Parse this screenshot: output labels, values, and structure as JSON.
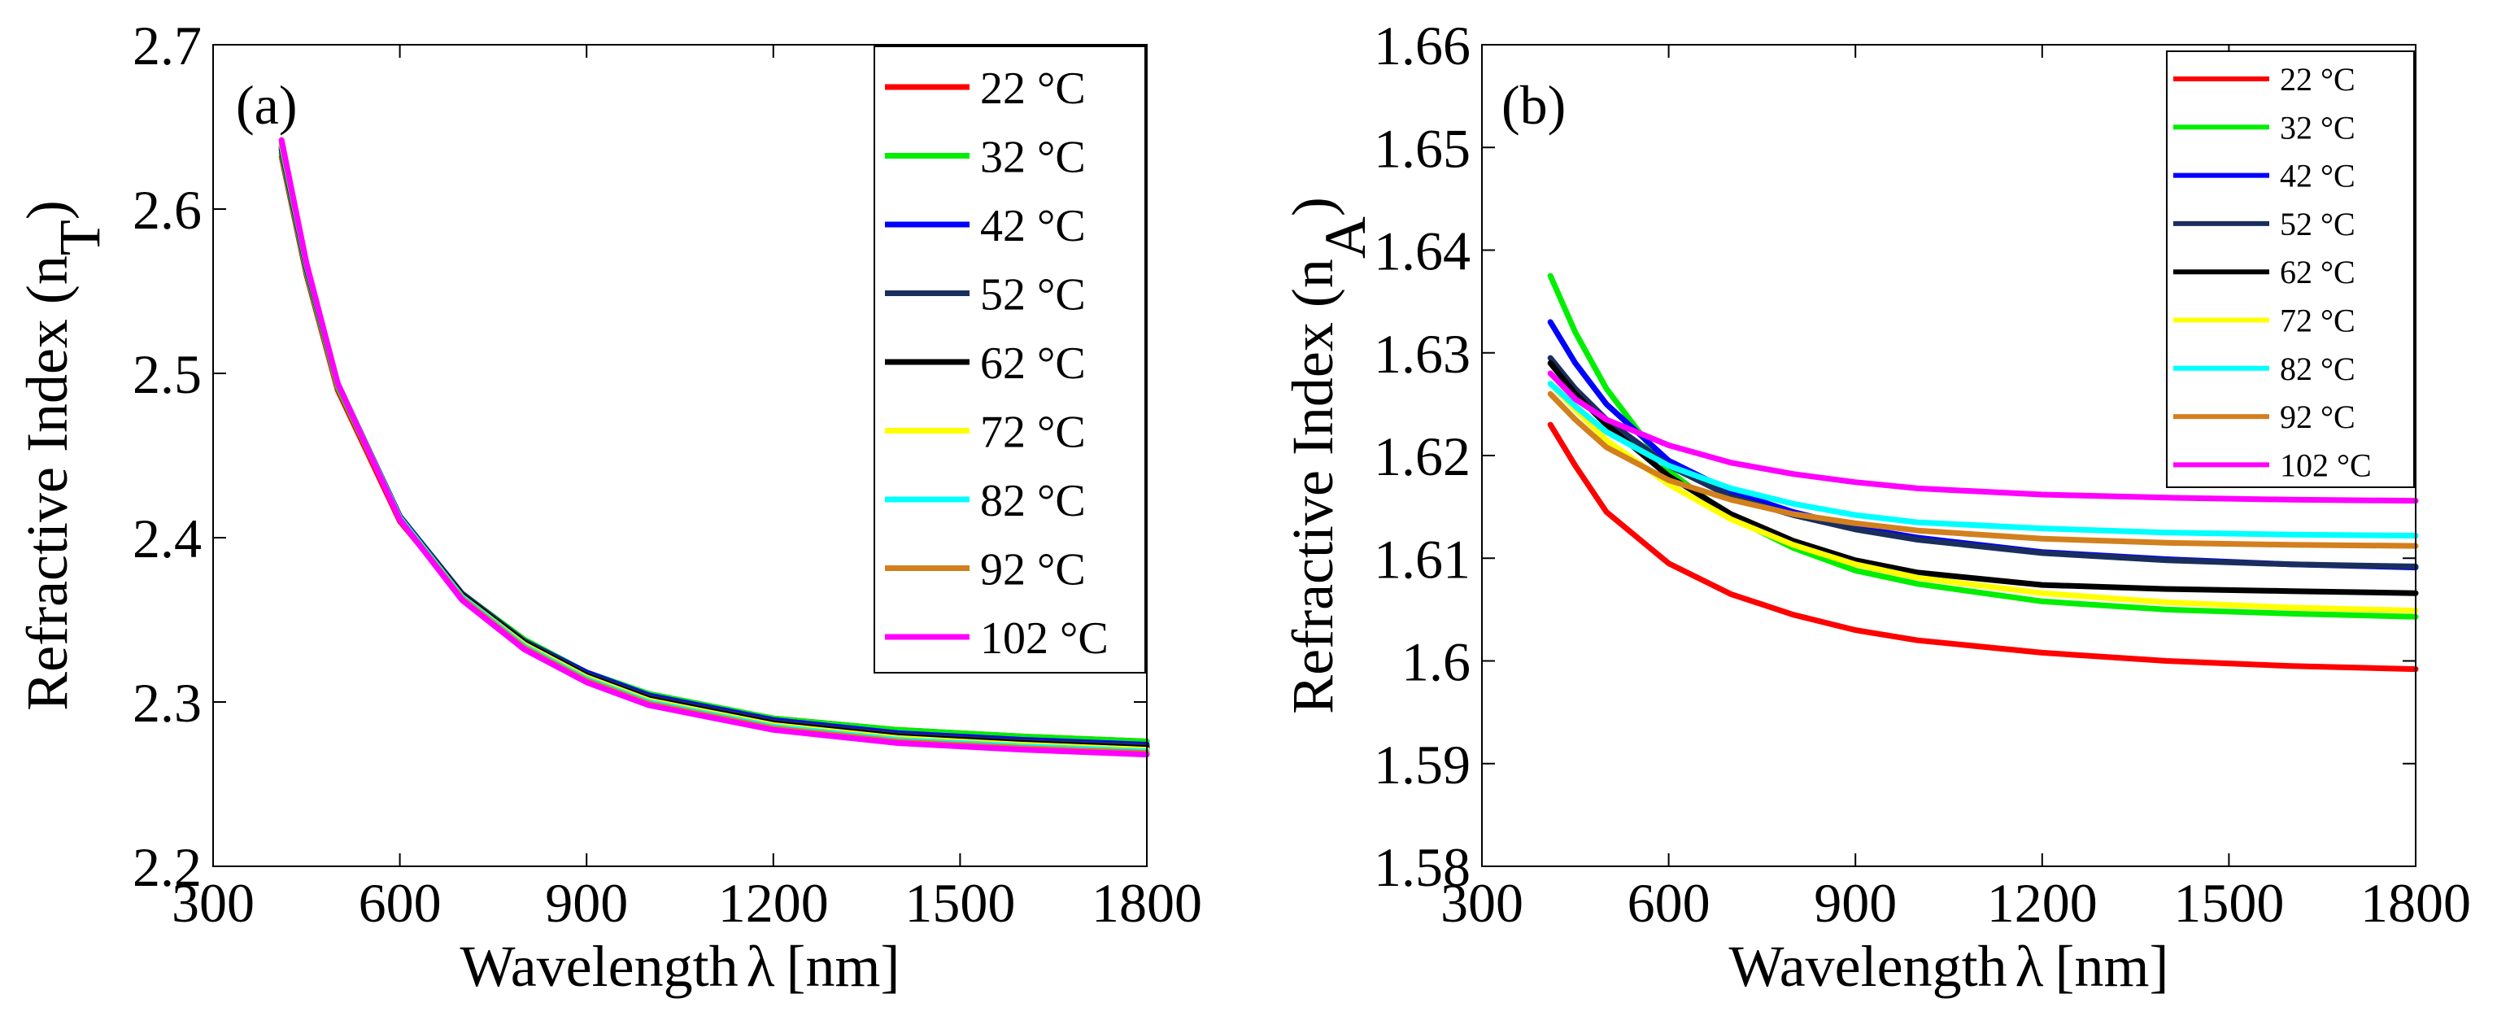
{
  "figure": {
    "panel_a_label": "(a)",
    "panel_b_label": "(b)"
  },
  "chart_data": [
    {
      "type": "line",
      "panel": "(a)",
      "title": "",
      "xlabel_main": "Wavelength",
      "xlabel_symbol": "λ",
      "xlabel_unit": "[nm]",
      "ylabel_main": "Refractive Index (n",
      "ylabel_sub": "T",
      "ylabel_close": ")",
      "xlim": [
        300,
        1800
      ],
      "ylim": [
        2.2,
        2.7
      ],
      "xticks": [
        300,
        600,
        900,
        1200,
        1500,
        1800
      ],
      "yticks": [
        2.2,
        2.3,
        2.4,
        2.5,
        2.6,
        2.7
      ],
      "ytick_labels": [
        "2.2",
        "2.3",
        "2.4",
        "2.5",
        "2.6",
        "2.7"
      ],
      "grid": false,
      "legend_position": "top-right",
      "x": [
        410,
        450,
        500,
        600,
        700,
        800,
        900,
        1000,
        1200,
        1400,
        1600,
        1800
      ],
      "series": [
        {
          "name": "22 °C",
          "color": "#ff0000",
          "values": [
            2.632,
            2.56,
            2.49,
            2.41,
            2.364,
            2.336,
            2.317,
            2.304,
            2.29,
            2.283,
            2.279,
            2.276
          ]
        },
        {
          "name": "32 °C",
          "color": "#00ee00",
          "values": [
            2.634,
            2.562,
            2.492,
            2.412,
            2.366,
            2.338,
            2.318,
            2.305,
            2.29,
            2.283,
            2.279,
            2.276
          ]
        },
        {
          "name": "42 °C",
          "color": "#0000ff",
          "values": [
            2.636,
            2.564,
            2.494,
            2.413,
            2.366,
            2.337,
            2.318,
            2.304,
            2.289,
            2.281,
            2.277,
            2.274
          ]
        },
        {
          "name": "52 °C",
          "color": "#1a2e5e",
          "values": [
            2.637,
            2.565,
            2.494,
            2.413,
            2.366,
            2.337,
            2.317,
            2.303,
            2.288,
            2.28,
            2.276,
            2.273
          ]
        },
        {
          "name": "62 °C",
          "color": "#000000",
          "values": [
            2.638,
            2.565,
            2.494,
            2.412,
            2.365,
            2.336,
            2.316,
            2.302,
            2.287,
            2.279,
            2.275,
            2.272
          ]
        },
        {
          "name": "72 °C",
          "color": "#ffff00",
          "values": [
            2.639,
            2.566,
            2.494,
            2.412,
            2.364,
            2.335,
            2.315,
            2.301,
            2.286,
            2.278,
            2.274,
            2.271
          ]
        },
        {
          "name": "82 °C",
          "color": "#00ffff",
          "values": [
            2.64,
            2.566,
            2.494,
            2.412,
            2.364,
            2.334,
            2.314,
            2.3,
            2.285,
            2.277,
            2.273,
            2.27
          ]
        },
        {
          "name": "92 °C",
          "color": "#d2801e",
          "values": [
            2.641,
            2.567,
            2.494,
            2.411,
            2.363,
            2.333,
            2.313,
            2.299,
            2.284,
            2.276,
            2.272,
            2.269
          ]
        },
        {
          "name": "102 °C",
          "color": "#ff00ff",
          "values": [
            2.642,
            2.567,
            2.494,
            2.411,
            2.362,
            2.332,
            2.312,
            2.298,
            2.283,
            2.275,
            2.271,
            2.268
          ]
        }
      ]
    },
    {
      "type": "line",
      "panel": "(b)",
      "title": "",
      "xlabel_main": "Wavelength",
      "xlabel_symbol": "λ",
      "xlabel_unit": "[nm]",
      "ylabel_main": "Refractive Index (n",
      "ylabel_sub": "A",
      "ylabel_close": ")",
      "xlim": [
        300,
        1800
      ],
      "ylim": [
        1.58,
        1.66
      ],
      "xticks": [
        300,
        600,
        900,
        1200,
        1500,
        1800
      ],
      "yticks": [
        1.58,
        1.59,
        1.6,
        1.61,
        1.62,
        1.63,
        1.64,
        1.65,
        1.66
      ],
      "ytick_labels": [
        "1.58",
        "1.59",
        "1.6",
        "1.61",
        "1.62",
        "1.63",
        "1.64",
        "1.65",
        "1.66"
      ],
      "grid": false,
      "legend_position": "top-right",
      "x": [
        410,
        450,
        500,
        600,
        700,
        800,
        900,
        1000,
        1200,
        1400,
        1600,
        1800
      ],
      "series": [
        {
          "name": "22 °C",
          "color": "#ff0000",
          "values": [
            1.623,
            1.619,
            1.6145,
            1.6095,
            1.6065,
            1.6045,
            1.603,
            1.602,
            1.6008,
            1.6,
            1.5995,
            1.5992
          ]
        },
        {
          "name": "32 °C",
          "color": "#00ee00",
          "values": [
            1.6375,
            1.632,
            1.6265,
            1.6185,
            1.614,
            1.611,
            1.6088,
            1.6075,
            1.6058,
            1.605,
            1.6046,
            1.6043
          ]
        },
        {
          "name": "42 °C",
          "color": "#0000ff",
          "values": [
            1.633,
            1.629,
            1.625,
            1.6195,
            1.6165,
            1.6145,
            1.613,
            1.612,
            1.6106,
            1.6099,
            1.6094,
            1.6091
          ]
        },
        {
          "name": "52 °C",
          "color": "#1a2e5e",
          "values": [
            1.6295,
            1.6265,
            1.6235,
            1.619,
            1.616,
            1.6142,
            1.6128,
            1.6118,
            1.6105,
            1.6098,
            1.6094,
            1.6092
          ]
        },
        {
          "name": "62 °C",
          "color": "#000000",
          "values": [
            1.629,
            1.626,
            1.623,
            1.618,
            1.6143,
            1.6117,
            1.6098,
            1.6086,
            1.6074,
            1.607,
            1.6068,
            1.6066
          ]
        },
        {
          "name": "72 °C",
          "color": "#ffff00",
          "values": [
            1.627,
            1.6245,
            1.6215,
            1.6172,
            1.6138,
            1.6113,
            1.6094,
            1.6081,
            1.6066,
            1.6057,
            1.6052,
            1.6049
          ]
        },
        {
          "name": "82 °C",
          "color": "#00ffff",
          "values": [
            1.627,
            1.6248,
            1.6223,
            1.619,
            1.6168,
            1.6153,
            1.6142,
            1.6135,
            1.6129,
            1.6125,
            1.6123,
            1.6122
          ]
        },
        {
          "name": "92 °C",
          "color": "#d2801e",
          "values": [
            1.626,
            1.6235,
            1.6208,
            1.6176,
            1.6157,
            1.6143,
            1.6134,
            1.6127,
            1.6119,
            1.6115,
            1.6113,
            1.6112
          ]
        },
        {
          "name": "102 °C",
          "color": "#ff00ff",
          "values": [
            1.628,
            1.6255,
            1.6235,
            1.621,
            1.6193,
            1.6182,
            1.6174,
            1.6168,
            1.6162,
            1.6159,
            1.6157,
            1.6156
          ]
        }
      ]
    }
  ]
}
